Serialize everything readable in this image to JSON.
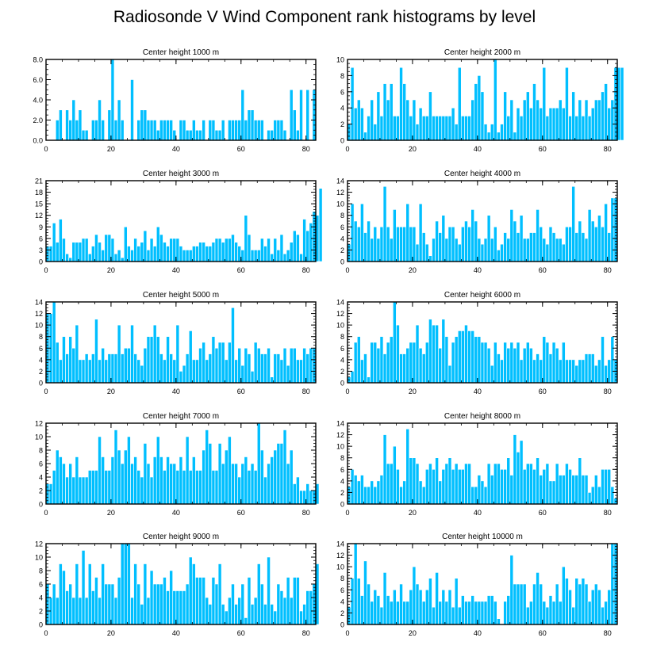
{
  "title": "Radiosonde V Wind Component rank histograms by level",
  "colors": {
    "bar": "#00bfff",
    "bar_edge": "#ffffff",
    "axis": "#000000"
  },
  "chart_data": [
    {
      "type": "bar",
      "title": "Center height 1000 m",
      "xlim": [
        0,
        83
      ],
      "xticks": [
        0,
        20,
        40,
        60,
        80
      ],
      "ylim": [
        0,
        8
      ],
      "yticks": [
        0,
        2,
        4,
        6,
        8
      ],
      "ytick_labels": [
        "0.0",
        "2.0",
        "4.0",
        "6.0",
        "8.0"
      ],
      "values": [
        0,
        0,
        0,
        2,
        3,
        0,
        3,
        2,
        4,
        2,
        3,
        1,
        1,
        0,
        2,
        2,
        4,
        2,
        0,
        3,
        8,
        2,
        4,
        2,
        0,
        0,
        6,
        0,
        2,
        3,
        3,
        2,
        2,
        2,
        1,
        2,
        2,
        2,
        2,
        1,
        0,
        2,
        2,
        1,
        1,
        2,
        1,
        1,
        2,
        0,
        2,
        2,
        1,
        1,
        2,
        0,
        2,
        2,
        2,
        2,
        5,
        2,
        3,
        3,
        2,
        2,
        2,
        0,
        1,
        1,
        2,
        2,
        2,
        1,
        0,
        5,
        3,
        1,
        5,
        0,
        5,
        0,
        5
      ]
    },
    {
      "type": "bar",
      "title": "Center height 2000 m",
      "xlim": [
        0,
        83
      ],
      "xticks": [
        0,
        20,
        40,
        60,
        80
      ],
      "ylim": [
        0,
        10
      ],
      "yticks": [
        0,
        2,
        4,
        6,
        8,
        10
      ],
      "ytick_labels": [
        "0",
        "2",
        "4",
        "6",
        "8",
        "10"
      ],
      "values": [
        2,
        9,
        4,
        5,
        4,
        1,
        3,
        5,
        2,
        6,
        3,
        7,
        5,
        7,
        3,
        3,
        9,
        7,
        5,
        3,
        5,
        2,
        4,
        3,
        3,
        6,
        3,
        3,
        3,
        3,
        3,
        3,
        4,
        2,
        9,
        3,
        3,
        3,
        5,
        7,
        8,
        6,
        2,
        1,
        2,
        10,
        1,
        2,
        6,
        3,
        5,
        1,
        4,
        3,
        5,
        6,
        4,
        7,
        5,
        4,
        9,
        3,
        4,
        4,
        4,
        5,
        4,
        9,
        3,
        6,
        3,
        5,
        3,
        5,
        3,
        4,
        5,
        5,
        6,
        7,
        4,
        5,
        9,
        9,
        9
      ]
    },
    {
      "type": "bar",
      "title": "Center height 3000 m",
      "xlim": [
        0,
        83
      ],
      "xticks": [
        0,
        20,
        40,
        60,
        80
      ],
      "ylim": [
        0,
        21
      ],
      "yticks": [
        0,
        3,
        6,
        9,
        12,
        15,
        18,
        21
      ],
      "ytick_labels": [
        "0",
        "3",
        "6",
        "9",
        "12",
        "15",
        "18",
        "21"
      ],
      "values": [
        4,
        4,
        10,
        5,
        11,
        6,
        2,
        1,
        5,
        5,
        5,
        6,
        6,
        2,
        4,
        7,
        5,
        3,
        7,
        7,
        6,
        2,
        3,
        1,
        9,
        4,
        3,
        6,
        4,
        5,
        8,
        3,
        6,
        4,
        9,
        7,
        5,
        4,
        6,
        6,
        6,
        4,
        3,
        3,
        3,
        4,
        4,
        5,
        5,
        4,
        4,
        5,
        6,
        6,
        5,
        6,
        6,
        7,
        5,
        4,
        3,
        12,
        7,
        3,
        3,
        3,
        6,
        4,
        6,
        2,
        6,
        3,
        7,
        2,
        3,
        5,
        8,
        7,
        2,
        11,
        8,
        10,
        13,
        12,
        19
      ]
    },
    {
      "type": "bar",
      "title": "Center height 4000 m",
      "xlim": [
        0,
        83
      ],
      "xticks": [
        0,
        20,
        40,
        60,
        80
      ],
      "ylim": [
        0,
        14
      ],
      "yticks": [
        0,
        2,
        4,
        6,
        8,
        10,
        12,
        14
      ],
      "ytick_labels": [
        "0",
        "2",
        "4",
        "6",
        "8",
        "10",
        "12",
        "14"
      ],
      "values": [
        3,
        10,
        7,
        6,
        10,
        5,
        7,
        4,
        6,
        4,
        6,
        13,
        6,
        4,
        9,
        6,
        6,
        6,
        10,
        6,
        6,
        3,
        10,
        5,
        3,
        1,
        4,
        7,
        5,
        8,
        4,
        6,
        6,
        4,
        3,
        6,
        7,
        6,
        9,
        7,
        4,
        3,
        4,
        8,
        4,
        6,
        2,
        3,
        5,
        4,
        9,
        7,
        5,
        8,
        4,
        4,
        5,
        5,
        9,
        6,
        4,
        3,
        6,
        5,
        4,
        4,
        3,
        6,
        6,
        13,
        5,
        7,
        5,
        4,
        9,
        7,
        6,
        8,
        6,
        10,
        5,
        11,
        11
      ]
    },
    {
      "type": "bar",
      "title": "Center height 5000 m",
      "xlim": [
        0,
        83
      ],
      "xticks": [
        0,
        20,
        40,
        60,
        80
      ],
      "ylim": [
        0,
        14
      ],
      "yticks": [
        0,
        2,
        4,
        6,
        8,
        10,
        12,
        14
      ],
      "ytick_labels": [
        "0",
        "2",
        "4",
        "6",
        "8",
        "10",
        "12",
        "14"
      ],
      "values": [
        12,
        12,
        14,
        7,
        4,
        8,
        5,
        8,
        6,
        10,
        4,
        4,
        5,
        4,
        5,
        11,
        4,
        6,
        4,
        5,
        5,
        5,
        10,
        5,
        6,
        6,
        10,
        5,
        4,
        3,
        6,
        8,
        8,
        10,
        8,
        5,
        4,
        8,
        5,
        4,
        10,
        2,
        3,
        5,
        9,
        4,
        4,
        6,
        7,
        4,
        5,
        8,
        6,
        7,
        7,
        4,
        7,
        13,
        4,
        6,
        3,
        6,
        5,
        2,
        7,
        6,
        5,
        5,
        6,
        1,
        5,
        5,
        4,
        6,
        3,
        6,
        6,
        4,
        4,
        6,
        5,
        6,
        6
      ]
    },
    {
      "type": "bar",
      "title": "Center height 6000 m",
      "xlim": [
        0,
        83
      ],
      "xticks": [
        0,
        20,
        40,
        60,
        80
      ],
      "ylim": [
        0,
        14
      ],
      "yticks": [
        0,
        2,
        4,
        6,
        8,
        10,
        12,
        14
      ],
      "ytick_labels": [
        "0",
        "2",
        "4",
        "6",
        "8",
        "10",
        "12",
        "14"
      ],
      "values": [
        1,
        2,
        7,
        8,
        4,
        5,
        1,
        7,
        7,
        6,
        8,
        5,
        7,
        8,
        14,
        10,
        5,
        5,
        6,
        7,
        7,
        10,
        6,
        5,
        7,
        11,
        10,
        10,
        6,
        11,
        8,
        3,
        7,
        8,
        9,
        9,
        10,
        9,
        9,
        8,
        8,
        7,
        7,
        6,
        3,
        7,
        5,
        4,
        7,
        6,
        7,
        6,
        7,
        4,
        6,
        7,
        6,
        4,
        5,
        4,
        8,
        7,
        5,
        7,
        6,
        4,
        7,
        4,
        4,
        4,
        3,
        4,
        4,
        5,
        5,
        5,
        3,
        4,
        8,
        3,
        4,
        8,
        4
      ]
    },
    {
      "type": "bar",
      "title": "Center height 7000 m",
      "xlim": [
        0,
        83
      ],
      "xticks": [
        0,
        20,
        40,
        60,
        80
      ],
      "ylim": [
        0,
        12
      ],
      "yticks": [
        0,
        2,
        4,
        6,
        8,
        10,
        12
      ],
      "ytick_labels": [
        "0",
        "2",
        "4",
        "6",
        "8",
        "10",
        "12"
      ],
      "values": [
        3,
        3,
        5,
        8,
        7,
        6,
        4,
        6,
        4,
        7,
        4,
        4,
        4,
        5,
        5,
        5,
        10,
        7,
        5,
        5,
        7,
        11,
        8,
        6,
        8,
        10,
        6,
        7,
        5,
        4,
        9,
        6,
        4,
        7,
        10,
        7,
        5,
        7,
        6,
        6,
        5,
        7,
        5,
        10,
        5,
        7,
        5,
        5,
        8,
        11,
        9,
        5,
        5,
        9,
        6,
        8,
        10,
        6,
        6,
        4,
        6,
        7,
        5,
        6,
        5,
        12,
        8,
        4,
        6,
        7,
        8,
        9,
        9,
        11,
        6,
        8,
        3,
        4,
        2,
        2,
        3,
        2,
        2,
        3
      ]
    },
    {
      "type": "bar",
      "title": "Center height 8000 m",
      "xlim": [
        0,
        83
      ],
      "xticks": [
        0,
        20,
        40,
        60,
        80
      ],
      "ylim": [
        0,
        14
      ],
      "yticks": [
        0,
        2,
        4,
        6,
        8,
        10,
        12,
        14
      ],
      "ytick_labels": [
        "0",
        "2",
        "4",
        "6",
        "8",
        "10",
        "12",
        "14"
      ],
      "values": [
        3,
        6,
        5,
        4,
        5,
        3,
        3,
        4,
        3,
        4,
        5,
        12,
        7,
        7,
        10,
        6,
        3,
        4,
        13,
        8,
        8,
        7,
        4,
        3,
        6,
        7,
        6,
        8,
        4,
        6,
        7,
        8,
        6,
        7,
        6,
        6,
        7,
        7,
        3,
        3,
        5,
        4,
        3,
        7,
        5,
        7,
        7,
        6,
        6,
        8,
        5,
        12,
        9,
        11,
        6,
        7,
        7,
        6,
        8,
        5,
        6,
        7,
        4,
        4,
        7,
        5,
        5,
        7,
        6,
        5,
        5,
        8,
        5,
        5,
        2,
        3,
        5,
        3,
        6,
        6,
        6,
        3,
        1
      ]
    },
    {
      "type": "bar",
      "title": "Center height 9000 m",
      "xlim": [
        0,
        83
      ],
      "xticks": [
        0,
        20,
        40,
        60,
        80
      ],
      "ylim": [
        0,
        12
      ],
      "yticks": [
        0,
        2,
        4,
        6,
        8,
        10,
        12
      ],
      "ytick_labels": [
        "0",
        "2",
        "4",
        "6",
        "8",
        "10",
        "12"
      ],
      "values": [
        6,
        4,
        6,
        4,
        9,
        8,
        5,
        6,
        4,
        9,
        4,
        11,
        4,
        9,
        5,
        7,
        4,
        9,
        6,
        6,
        6,
        4,
        7,
        12,
        12,
        12,
        4,
        9,
        6,
        3,
        9,
        4,
        8,
        6,
        6,
        6,
        7,
        5,
        8,
        5,
        5,
        5,
        5,
        6,
        10,
        9,
        7,
        7,
        7,
        4,
        3,
        7,
        6,
        9,
        3,
        2,
        4,
        6,
        3,
        4,
        6,
        1,
        7,
        3,
        4,
        9,
        6,
        3,
        10,
        3,
        2,
        6,
        5,
        4,
        7,
        4,
        7,
        7,
        2,
        3,
        5,
        5,
        6,
        9
      ]
    },
    {
      "type": "bar",
      "title": "Center height 10000 m",
      "xlim": [
        0,
        83
      ],
      "xticks": [
        0,
        20,
        40,
        60,
        80
      ],
      "ylim": [
        0,
        14
      ],
      "yticks": [
        0,
        2,
        4,
        6,
        8,
        10,
        12,
        14
      ],
      "ytick_labels": [
        "0",
        "2",
        "4",
        "6",
        "8",
        "10",
        "12",
        "14"
      ],
      "values": [
        3,
        8,
        14,
        8,
        5,
        11,
        7,
        4,
        6,
        5,
        3,
        9,
        5,
        4,
        6,
        4,
        7,
        4,
        4,
        6,
        10,
        7,
        6,
        4,
        6,
        8,
        3,
        9,
        4,
        6,
        4,
        6,
        3,
        8,
        3,
        5,
        4,
        4,
        5,
        4,
        4,
        4,
        4,
        5,
        5,
        4,
        1,
        0,
        4,
        5,
        12,
        7,
        7,
        7,
        7,
        3,
        4,
        7,
        9,
        7,
        4,
        3,
        5,
        4,
        7,
        4,
        10,
        8,
        6,
        3,
        8,
        7,
        8,
        7,
        4,
        6,
        7,
        6,
        3,
        4,
        6,
        14,
        14
      ]
    }
  ]
}
